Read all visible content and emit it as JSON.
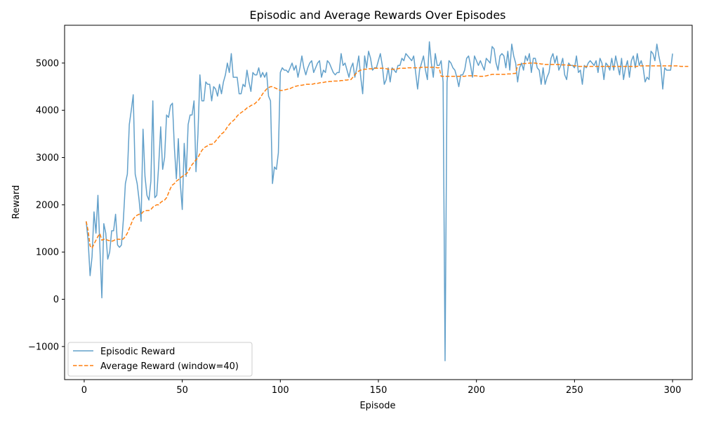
{
  "chart_data": {
    "type": "line",
    "title": "Episodic and Average Rewards Over Episodes",
    "xlabel": "Episode",
    "ylabel": "Reward",
    "xlim": [
      -10,
      310
    ],
    "ylim": [
      -1700,
      5800
    ],
    "xticks": [
      0,
      50,
      100,
      150,
      200,
      250,
      300
    ],
    "yticks": [
      -1000,
      0,
      1000,
      2000,
      3000,
      4000,
      5000
    ],
    "ytick_labels": [
      "−1000",
      "0",
      "1000",
      "2000",
      "3000",
      "4000",
      "5000"
    ],
    "grid": false,
    "legend_position": "lower-left",
    "colors": {
      "episodic": "#1f77b4",
      "average": "#ff7f0e"
    },
    "series": [
      {
        "name": "Episodic Reward",
        "style": "solid",
        "x_start": 1,
        "values": [
          1650,
          1250,
          500,
          900,
          1850,
          1400,
          2200,
          1100,
          30,
          1600,
          1400,
          850,
          1000,
          1450,
          1450,
          1800,
          1150,
          1100,
          1150,
          1700,
          2450,
          2650,
          3700,
          4000,
          4330,
          2650,
          2450,
          2100,
          1650,
          3600,
          2600,
          2200,
          2100,
          2500,
          4200,
          2150,
          2200,
          2850,
          3650,
          2750,
          3000,
          3900,
          3850,
          4100,
          4150,
          3200,
          2550,
          3400,
          2450,
          1900,
          3300,
          2600,
          3700,
          3900,
          3900,
          4200,
          2700,
          3500,
          4750,
          4200,
          4200,
          4600,
          4550,
          4550,
          4200,
          4500,
          4450,
          4300,
          4550,
          4350,
          4600,
          4750,
          5000,
          4800,
          5200,
          4700,
          4700,
          4700,
          4350,
          4350,
          4550,
          4500,
          4850,
          4600,
          4400,
          4800,
          4750,
          4750,
          4900,
          4700,
          4800,
          4700,
          4800,
          4300,
          4200,
          2450,
          2800,
          2750,
          3100,
          4800,
          4900,
          4850,
          4850,
          4800,
          4900,
          5000,
          4850,
          4950,
          4700,
          4900,
          5150,
          4900,
          4750,
          4900,
          5000,
          5050,
          4800,
          4900,
          5000,
          5050,
          4700,
          4850,
          4800,
          5050,
          5000,
          4900,
          4800,
          4750,
          4800,
          4800,
          5200,
          4950,
          5000,
          4850,
          4700,
          4900,
          5000,
          4700,
          4900,
          5150,
          4700,
          4350,
          5150,
          4900,
          5250,
          5100,
          4850,
          4900,
          4900,
          5050,
          5200,
          4950,
          4550,
          4650,
          4900,
          4600,
          4900,
          4850,
          4800,
          4950,
          4950,
          5100,
          5050,
          5200,
          5150,
          5100,
          5050,
          5150,
          4800,
          4450,
          4850,
          5000,
          5150,
          4850,
          4650,
          5450,
          5000,
          4700,
          5200,
          4950,
          4950,
          5050,
          4600,
          -1300,
          4600,
          5050,
          5000,
          4900,
          4850,
          4700,
          4500,
          4750,
          4750,
          4850,
          5100,
          5150,
          4950,
          4700,
          5150,
          5050,
          4950,
          5050,
          4950,
          4850,
          5100,
          5050,
          5000,
          5350,
          5300,
          5000,
          4850,
          5150,
          5200,
          5150,
          4900,
          5250,
          4850,
          5400,
          5150,
          5000,
          4600,
          4900,
          5000,
          4850,
          5150,
          5050,
          5200,
          4800,
          5100,
          5100,
          4900,
          4850,
          4550,
          4900,
          4550,
          4700,
          4800,
          5100,
          5200,
          5000,
          5150,
          4850,
          4950,
          5100,
          4750,
          4650,
          5000,
          4950,
          4950,
          4900,
          5150,
          4800,
          4850,
          4550,
          4950,
          4900,
          5000,
          5050,
          5000,
          4950,
          5050,
          4800,
          5100,
          5000,
          4650,
          5000,
          4950,
          4850,
          5100,
          4850,
          5150,
          4950,
          4750,
          5100,
          4650,
          4900,
          5050,
          4700,
          5050,
          5150,
          4900,
          5200,
          4950,
          5050,
          4900,
          4600,
          4700,
          4650,
          5250,
          5200,
          5050,
          5400,
          5150,
          4950,
          4450,
          4900,
          4850,
          4850,
          4850,
          5200
        ]
      },
      {
        "name": "Average Reward (window=40)",
        "style": "dashed",
        "x_start": 1,
        "values": [
          1650,
          1450,
          1130,
          1080,
          1170,
          1250,
          1330,
          1390,
          1250,
          1270,
          1270,
          1250,
          1240,
          1230,
          1240,
          1270,
          1270,
          1270,
          1260,
          1280,
          1330,
          1400,
          1500,
          1600,
          1700,
          1750,
          1780,
          1800,
          1800,
          1850,
          1870,
          1880,
          1880,
          1900,
          1950,
          1980,
          2000,
          2000,
          2050,
          2080,
          2100,
          2150,
          2250,
          2350,
          2420,
          2450,
          2500,
          2530,
          2570,
          2600,
          2630,
          2650,
          2700,
          2780,
          2850,
          2900,
          2950,
          3000,
          3080,
          3150,
          3200,
          3230,
          3250,
          3280,
          3280,
          3300,
          3350,
          3400,
          3450,
          3500,
          3530,
          3580,
          3650,
          3700,
          3750,
          3780,
          3820,
          3880,
          3920,
          3950,
          3980,
          4010,
          4050,
          4070,
          4100,
          4120,
          4140,
          4180,
          4220,
          4280,
          4350,
          4400,
          4450,
          4480,
          4500,
          4500,
          4480,
          4460,
          4440,
          4420,
          4420,
          4430,
          4440,
          4450,
          4460,
          4480,
          4500,
          4510,
          4520,
          4530,
          4530,
          4540,
          4550,
          4550,
          4550,
          4550,
          4560,
          4570,
          4570,
          4580,
          4590,
          4590,
          4600,
          4600,
          4610,
          4610,
          4620,
          4620,
          4620,
          4620,
          4630,
          4630,
          4640,
          4640,
          4650,
          4650,
          4700,
          4750,
          4800,
          4830,
          4850,
          4860,
          4870,
          4870,
          4880,
          4880,
          4880,
          4890,
          4890,
          4890,
          4890,
          4890,
          4890,
          4880,
          4870,
          4870,
          4870,
          4870,
          4870,
          4880,
          4890,
          4890,
          4890,
          4890,
          4900,
          4900,
          4900,
          4900,
          4900,
          4900,
          4900,
          4910,
          4910,
          4910,
          4910,
          4910,
          4910,
          4910,
          4910,
          4900,
          4900,
          4720,
          4720,
          4720,
          4720,
          4720,
          4720,
          4720,
          4720,
          4720,
          4720,
          4720,
          4720,
          4720,
          4730,
          4730,
          4730,
          4730,
          4730,
          4730,
          4720,
          4720,
          4720,
          4720,
          4730,
          4740,
          4750,
          4760,
          4760,
          4760,
          4760,
          4760,
          4760,
          4760,
          4760,
          4770,
          4770,
          4770,
          4780,
          4780,
          4960,
          4970,
          4980,
          4990,
          4990,
          4990,
          5000,
          5000,
          5000,
          5000,
          4990,
          4990,
          4980,
          4980,
          4970,
          4970,
          4970,
          4970,
          4970,
          4970,
          4970,
          4970,
          4960,
          4960,
          4960,
          4960,
          4950,
          4950,
          4950,
          4940,
          4940,
          4930,
          4930,
          4930,
          4930,
          4930,
          4930,
          4930,
          4930,
          4930,
          4930,
          4930,
          4930,
          4930,
          4930,
          4930,
          4930,
          4930,
          4930,
          4930,
          4930,
          4930,
          4930,
          4930,
          4930,
          4930,
          4930,
          4930,
          4930,
          4930,
          4930,
          4930,
          4940,
          4940,
          4940,
          4940,
          4940,
          4940,
          4940,
          4940,
          4940,
          4940,
          4940,
          4940,
          4940,
          4940,
          4940,
          4940,
          4940,
          4940,
          4940,
          4940,
          4940,
          4930,
          4930,
          4930,
          4930,
          4930
        ]
      }
    ]
  }
}
